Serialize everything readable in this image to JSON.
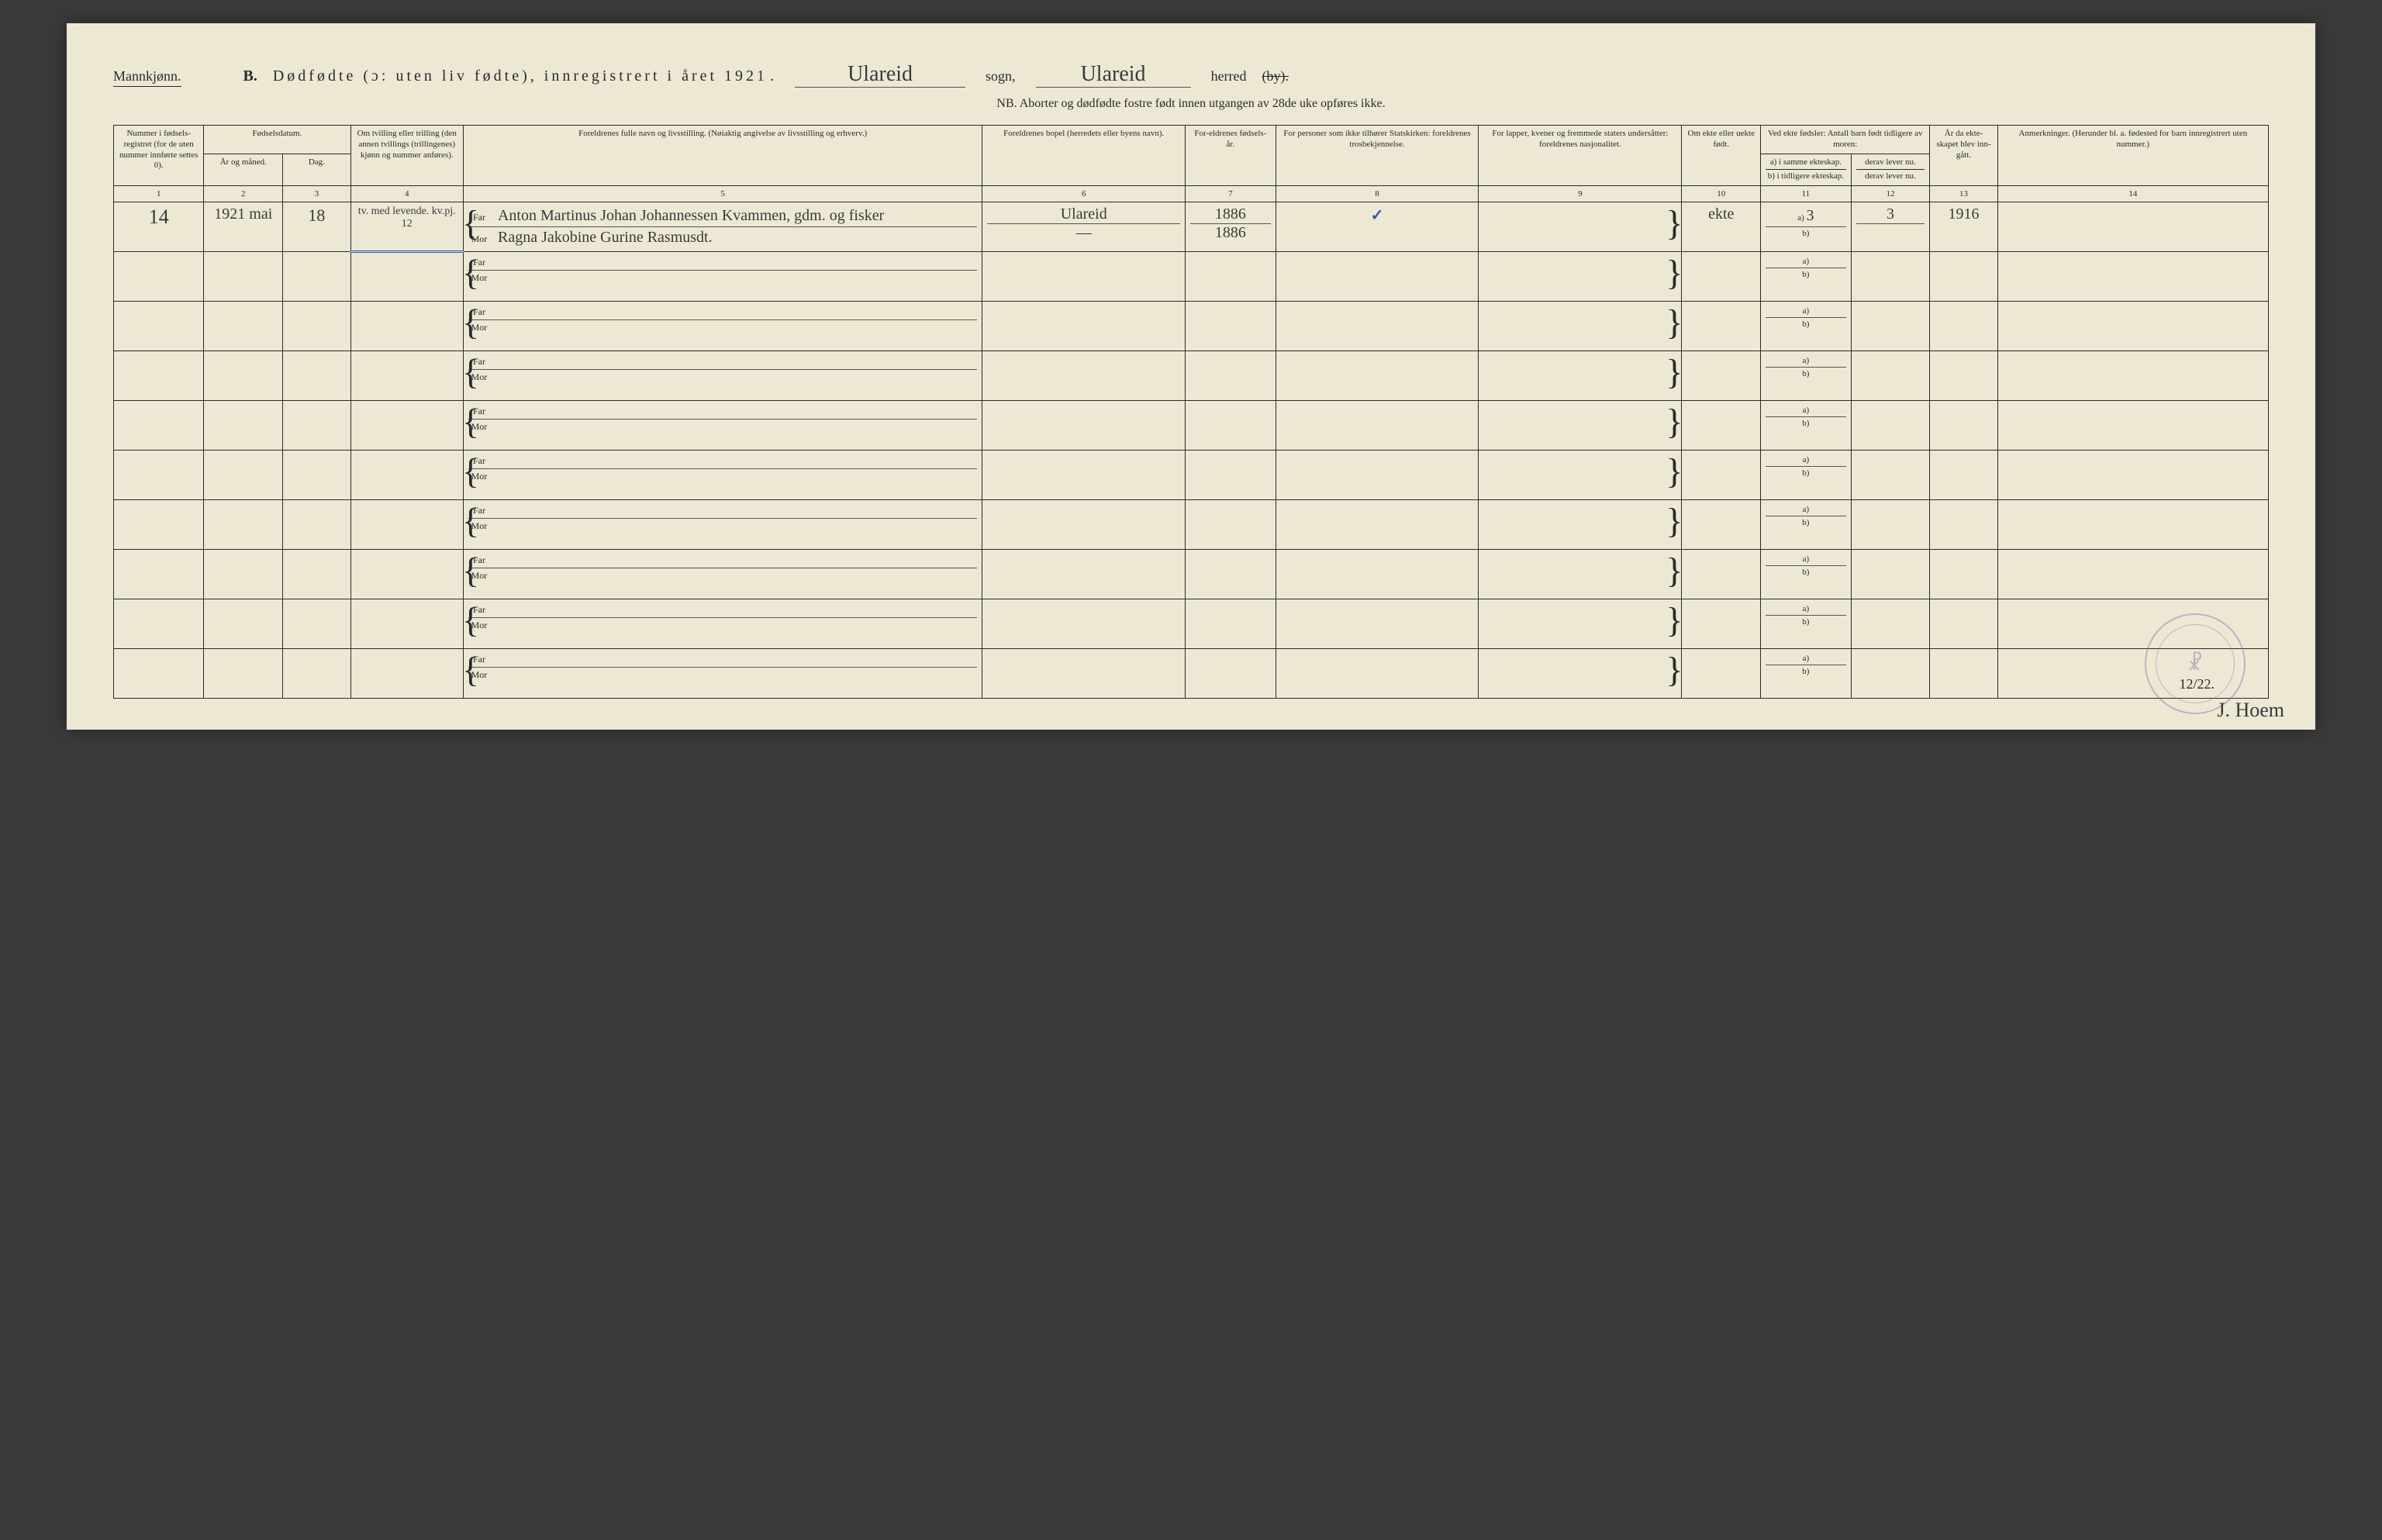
{
  "header": {
    "gender": "Mannkjønn.",
    "section_letter": "B.",
    "title_main": "Dødfødte (ɔ: uten liv fødte), innregistrert i året 192",
    "year_suffix": "1",
    "sogn_label": "sogn,",
    "sogn_value": "Ulareid",
    "herred_label": "herred",
    "herred_struck": "(by).",
    "herred_value": "Ulareid",
    "nb_note": "NB. Aborter og dødfødte fostre født innen utgangen av 28de uke opføres ikke."
  },
  "columns": {
    "c1": "Nummer i fødsels-registret (for de uten nummer innførte settes 0).",
    "c2_top": "Fødselsdatum.",
    "c2a": "År og måned.",
    "c2b": "Dag.",
    "c4": "Om tvilling eller trilling (den annen tvillings (trillingenes) kjønn og nummer anføres).",
    "c5": "Foreldrenes fulle navn og livsstilling.\n(Nøiaktig angivelse av livsstilling og erhverv.)",
    "c6": "Foreldrenes bopel (herredets eller byens navn).",
    "c7": "For-eldrenes fødsels-år.",
    "c8": "For personer som ikke tilhører Statskirken: foreldrenes trosbekjennelse.",
    "c9": "For lapper, kvener og fremmede staters undersåtter: foreldrenes nasjonalitet.",
    "c10": "Om ekte eller uekte født.",
    "c11_top": "Ved ekte fødsler: Antall barn født tidligere av moren:",
    "c11a": "a) i samme ekteskap.",
    "c11b": "b) i tidligere ekteskap.",
    "c12a": "derav lever nu.",
    "c12b": "derav lever nu.",
    "c13": "År da ekte-skapet blev inn-gått.",
    "c14": "Anmerkninger.\n(Herunder bl. a. fødested for barn innregistrert uten nummer.)"
  },
  "colnums": [
    "1",
    "2",
    "3",
    "4",
    "5",
    "6",
    "7",
    "8",
    "9",
    "10",
    "11",
    "12",
    "13",
    "14"
  ],
  "parent_labels": {
    "far": "Far",
    "mor": "Mor"
  },
  "ab_labels": {
    "a": "a)",
    "b": "b)"
  },
  "entry": {
    "number": "14",
    "year_month": "1921 mai",
    "day": "18",
    "twin_note": "tv. med levende. kv.pj. 12",
    "father": "Anton Martinus Johan Johannessen Kvammen, gdm. og fisker",
    "mother": "Ragna Jakobine Gurine Rasmusdt.",
    "bopel_far": "Ulareid",
    "bopel_mor": "—",
    "birthyear_far": "1886",
    "birthyear_mor": "1886",
    "checkmark": "✓",
    "ekte": "ekte",
    "col11a": "3",
    "col12a": "3",
    "col13": "1916"
  },
  "empty_rows": 9,
  "footer": {
    "page_number": "12/22.",
    "signature": "J. Hoem",
    "stamp_symbol": "☧"
  },
  "colors": {
    "paper": "#ede8d4",
    "ink": "#2a2a2a",
    "stamp": "#8a6fa8",
    "blue_mark": "#2a5aa8",
    "background": "#3a3a3a"
  }
}
